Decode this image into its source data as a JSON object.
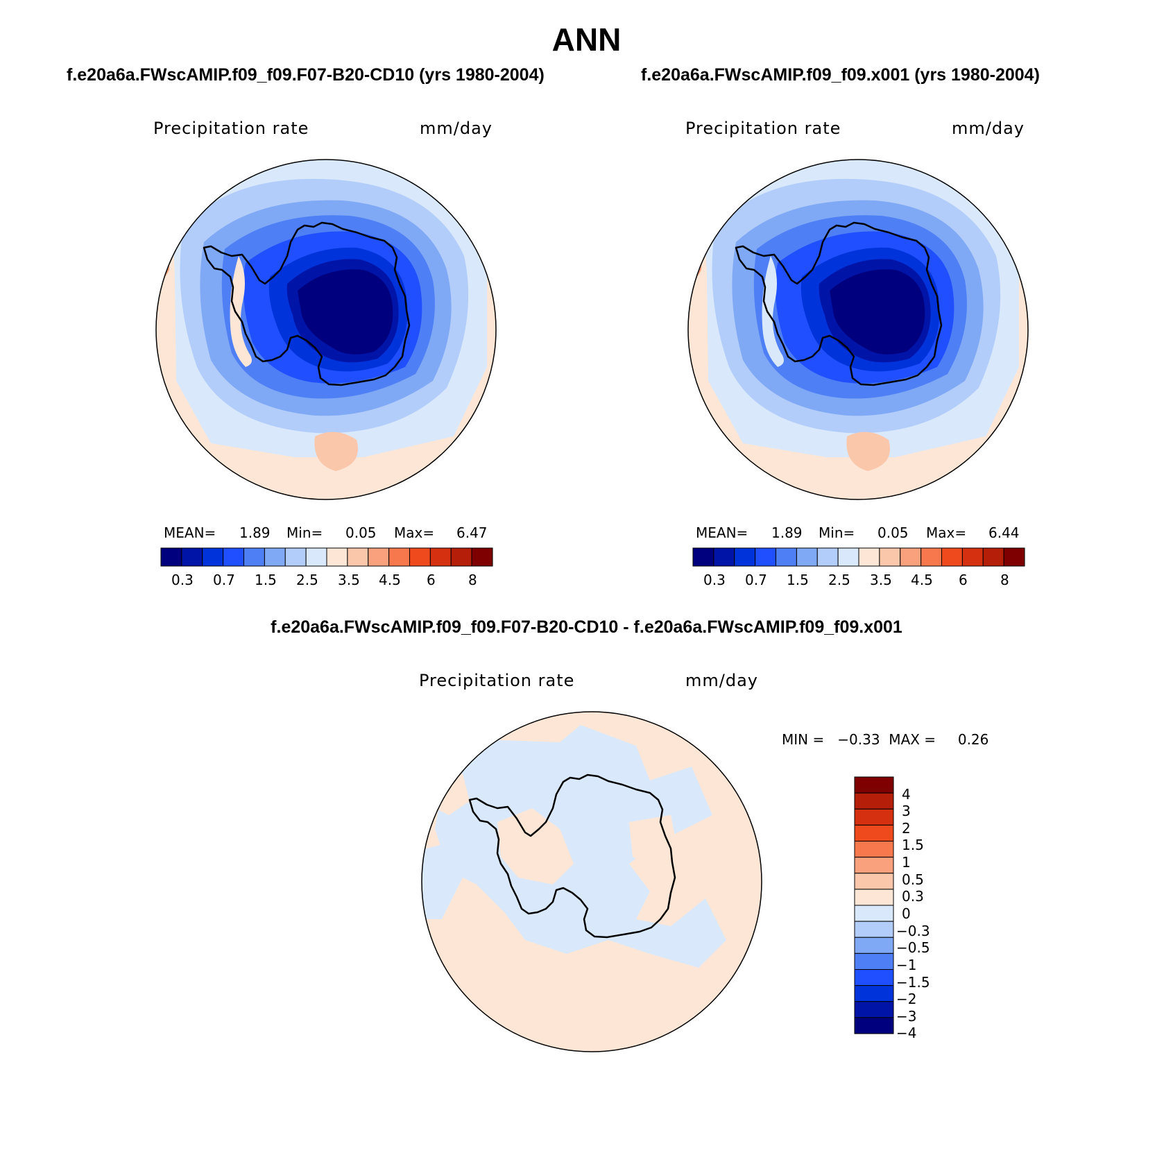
{
  "title": "ANN",
  "panels": [
    {
      "case": "f.e20a6a.FWscAMIP.f09_f09.F07-B20-CD10 (yrs 1980-2004)",
      "variable": "Precipitation  rate",
      "units": "mm/day",
      "mean_label": "MEAN=",
      "mean": "1.89",
      "min_label": "Min=",
      "min": "0.05",
      "max_label": "Max=",
      "max": "6.47"
    },
    {
      "case": "f.e20a6a.FWscAMIP.f09_f09.x001 (yrs 1980-2004)",
      "variable": "Precipitation  rate",
      "units": "mm/day",
      "mean_label": "MEAN=",
      "mean": "1.89",
      "min_label": "Min=",
      "min": "0.05",
      "max_label": "Max=",
      "max": "6.44"
    }
  ],
  "difference": {
    "title": "f.e20a6a.FWscAMIP.f09_f09.F07-B20-CD10 - f.e20a6a.FWscAMIP.f09_f09.x001",
    "variable": "Precipitation  rate",
    "units": "mm/day",
    "minmax_text": "MIN =   −0.33  MAX =     0.26",
    "levels": [
      "4",
      "3",
      "2",
      "1.5",
      "1",
      "0.5",
      "0.3",
      "0",
      "−0.3",
      "−0.5",
      "−1",
      "−1.5",
      "−2",
      "−3",
      "−4"
    ]
  },
  "colorbar": {
    "colors": [
      "#00007f",
      "#0014a8",
      "#0033d9",
      "#1f4fff",
      "#4f7ff5",
      "#7fa8f5",
      "#b3cdfa",
      "#d9e9fb",
      "#fde6d5",
      "#fbc7ab",
      "#f9a07d",
      "#f7784c",
      "#ee4a1e",
      "#d5300f",
      "#b51e08",
      "#7f0000"
    ],
    "tick_labels": [
      "0.3",
      "0.7",
      "1.5",
      "2.5",
      "3.5",
      "4.5",
      "6",
      "8"
    ]
  }
}
